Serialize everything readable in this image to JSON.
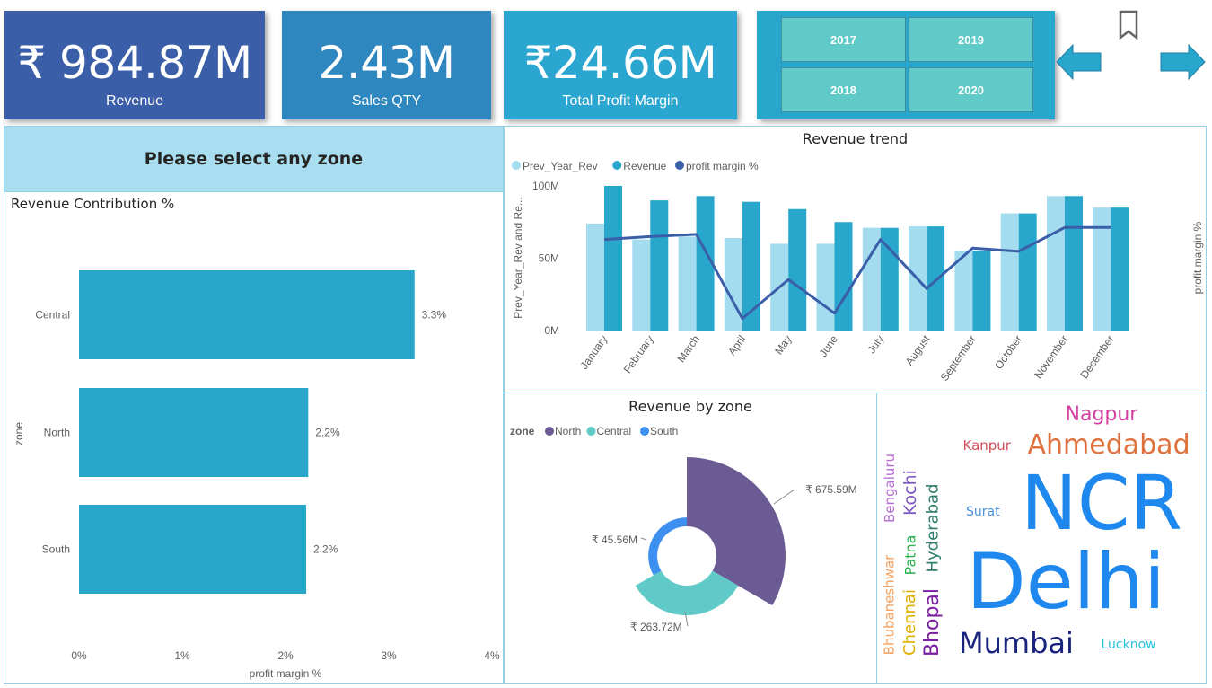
{
  "kpis": [
    {
      "value": "₹ 984.87M",
      "label": "Revenue",
      "color": "#3a5ea8"
    },
    {
      "value": "2.43M",
      "label": "Sales QTY",
      "color": "#2f87c0"
    },
    {
      "value": "₹24.66M",
      "label": "Total Profit Margin",
      "color": "#2aa6d0"
    }
  ],
  "year_slicer": {
    "options": [
      "2017",
      "2019",
      "2018",
      "2020"
    ]
  },
  "nav": {
    "back_icon": "arrow-left-icon",
    "forward_icon": "arrow-right-icon",
    "bookmark_icon": "bookmark-icon"
  },
  "zone_header": "Please select any zone",
  "chart_data": [
    {
      "type": "bar",
      "orientation": "horizontal",
      "title": "Revenue Contribution %",
      "xlabel": "profit margin %",
      "ylabel": "zone",
      "categories": [
        "Central",
        "North",
        "South"
      ],
      "values": [
        3.25,
        2.22,
        2.2
      ],
      "data_labels": [
        "3.3%",
        "2.2%",
        "2.2%"
      ],
      "xlim": [
        0,
        4
      ],
      "xticks": [
        "0%",
        "1%",
        "2%",
        "3%",
        "4%"
      ],
      "color": "#29a6cc"
    },
    {
      "type": "bar+line",
      "title": "Revenue trend",
      "ylabel": "Prev_Year_Rev and Re...",
      "y2label": "profit margin %",
      "categories": [
        "January",
        "February",
        "March",
        "April",
        "May",
        "June",
        "July",
        "August",
        "September",
        "October",
        "November",
        "December"
      ],
      "series": [
        {
          "name": "Prev_Year_Rev",
          "type": "bar",
          "color": "#a3dcef",
          "values": [
            74,
            63,
            65,
            64,
            60,
            60,
            71,
            72,
            55,
            81,
            93,
            85
          ]
        },
        {
          "name": "Revenue",
          "type": "bar",
          "color": "#29a6cc",
          "values": [
            100,
            90,
            93,
            89,
            84,
            75,
            71,
            72,
            55,
            81,
            93,
            85
          ]
        },
        {
          "name": "profit margin %",
          "type": "line",
          "axis": "secondary",
          "color": "#3a5ea8",
          "values": [
            2.52,
            2.6,
            2.66,
            0.33,
            1.41,
            0.48,
            2.52,
            1.16,
            2.28,
            2.19,
            2.85,
            2.85
          ]
        }
      ],
      "ylim": [
        0,
        100
      ],
      "y2lim": [
        0,
        4
      ],
      "yticks": [
        "0M",
        "50M",
        "100M"
      ],
      "legend": "top-left"
    },
    {
      "type": "pie",
      "variant": "radial donut",
      "title": "Revenue by zone",
      "legend_title": "zone",
      "legend": "top-left",
      "categories": [
        "North",
        "Central",
        "South"
      ],
      "values": [
        675.59,
        263.72,
        45.56
      ],
      "data_labels": [
        "₹ 675.59M",
        "₹ 263.72M",
        "₹ 45.56M"
      ],
      "colors": [
        "#6b5b95",
        "#5fcac8",
        "#3d8ff0"
      ]
    }
  ],
  "word_cloud": [
    {
      "text": "NCR",
      "color": "#1e88ee"
    },
    {
      "text": "Delhi",
      "color": "#1e88ee"
    },
    {
      "text": "Ahmedabad",
      "color": "#e0703c"
    },
    {
      "text": "Nagpur",
      "color": "#d43fa0"
    },
    {
      "text": "Mumbai",
      "color": "#1a237e"
    },
    {
      "text": "Lucknow",
      "color": "#26c2dd"
    },
    {
      "text": "Surat",
      "color": "#4a8fe0"
    },
    {
      "text": "Kanpur",
      "color": "#d24f5a"
    },
    {
      "text": "Bengaluru",
      "color": "#b56fd0"
    },
    {
      "text": "Kochi",
      "color": "#7e57c2"
    },
    {
      "text": "Hyderabad",
      "color": "#2e7d6b"
    },
    {
      "text": "Patna",
      "color": "#2bb24c"
    },
    {
      "text": "Bhubaneshwar",
      "color": "#f4a261"
    },
    {
      "text": "Chennai",
      "color": "#dfb000"
    },
    {
      "text": "Bhopal",
      "color": "#7b1fa2"
    }
  ]
}
